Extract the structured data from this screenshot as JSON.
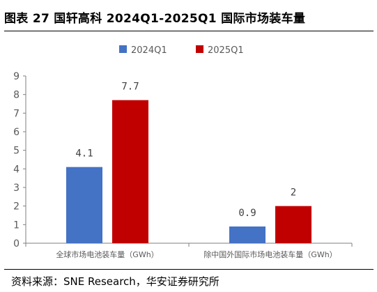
{
  "figure": {
    "title": "图表 27  国轩高科 2024Q1-2025Q1 国际市场装车量",
    "source": "资料来源：SNE Research，华安证券研究所"
  },
  "chart_data": {
    "type": "bar",
    "categories": [
      "全球市场电池装车量（GWh）",
      "除中国外国际市场电池装车量（GWh）"
    ],
    "series": [
      {
        "name": "2024Q1",
        "values": [
          4.1,
          0.9
        ],
        "labels": [
          "4.1",
          "0.9"
        ],
        "color": "#4472C4"
      },
      {
        "name": "2025Q1",
        "values": [
          7.7,
          2
        ],
        "labels": [
          "7.7",
          "2"
        ],
        "color": "#C00000"
      }
    ],
    "ylim": [
      0,
      9
    ],
    "yticks": [
      0,
      1,
      2,
      3,
      4,
      5,
      6,
      7,
      8,
      9
    ],
    "grid": false,
    "legend_position": "top"
  }
}
